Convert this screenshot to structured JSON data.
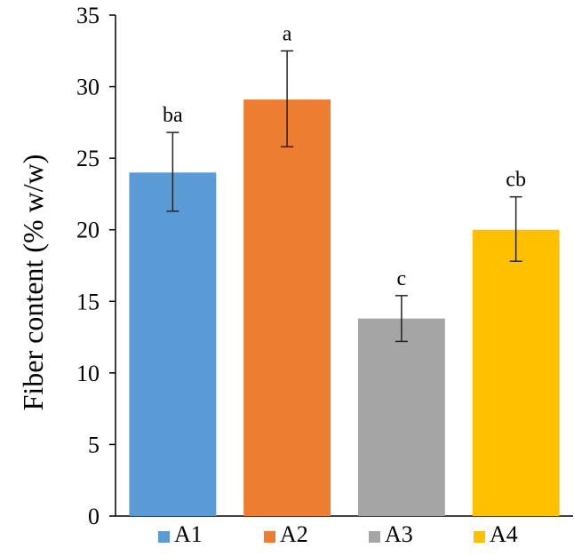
{
  "chart_data": {
    "type": "bar",
    "categories": [
      "A1",
      "A2",
      "A3",
      "A4"
    ],
    "values": [
      24.0,
      29.1,
      13.8,
      20.0
    ],
    "error_plus": [
      2.8,
      3.4,
      1.6,
      2.3
    ],
    "error_minus": [
      2.7,
      3.3,
      1.6,
      2.2
    ],
    "data_labels": [
      "ba",
      "a",
      "c",
      "cb"
    ],
    "colors": [
      "#5B9BD5",
      "#ED7D31",
      "#A5A5A5",
      "#FFC000"
    ],
    "title": "",
    "xlabel": "",
    "ylabel": "Fiber content (% w/w)",
    "ylim": [
      0,
      35
    ],
    "yticks": [
      "0",
      "5",
      "10",
      "15",
      "20",
      "25",
      "30",
      "35"
    ],
    "grid": false,
    "legend_position": "bottom",
    "legend": [
      "A1",
      "A2",
      "A3",
      "A4"
    ]
  }
}
